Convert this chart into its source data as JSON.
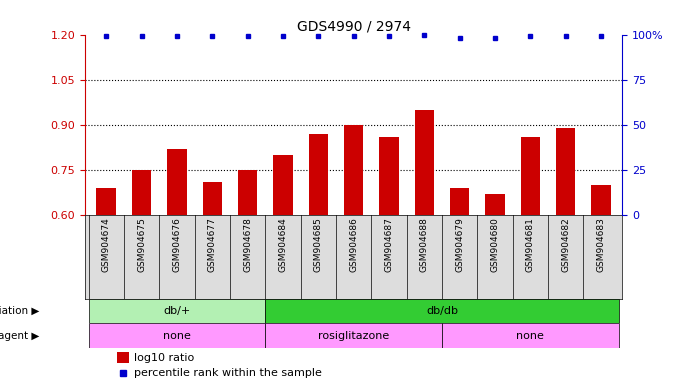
{
  "title": "GDS4990 / 2974",
  "samples": [
    "GSM904674",
    "GSM904675",
    "GSM904676",
    "GSM904677",
    "GSM904678",
    "GSM904684",
    "GSM904685",
    "GSM904686",
    "GSM904687",
    "GSM904688",
    "GSM904679",
    "GSM904680",
    "GSM904681",
    "GSM904682",
    "GSM904683"
  ],
  "log10_ratio": [
    0.69,
    0.75,
    0.82,
    0.71,
    0.75,
    0.8,
    0.87,
    0.9,
    0.86,
    0.95,
    0.69,
    0.67,
    0.86,
    0.89,
    0.7
  ],
  "percentile_vals": [
    99,
    99,
    99,
    99,
    99,
    99,
    99,
    99,
    99,
    99.5,
    98,
    98,
    99,
    99,
    99
  ],
  "bar_color": "#cc0000",
  "dot_color": "#0000cc",
  "ylim_left": [
    0.6,
    1.2
  ],
  "ylim_right": [
    0,
    100
  ],
  "yticks_left": [
    0.6,
    0.75,
    0.9,
    1.05,
    1.2
  ],
  "yticks_right": [
    0,
    25,
    50,
    75,
    100
  ],
  "hlines": [
    0.75,
    0.9,
    1.05
  ],
  "genotype_groups": [
    {
      "label": "db/+",
      "start": 0,
      "end": 5,
      "color": "#b3f0b3"
    },
    {
      "label": "db/db",
      "start": 5,
      "end": 15,
      "color": "#33cc33"
    }
  ],
  "agent_groups": [
    {
      "label": "none",
      "start": 0,
      "end": 5,
      "color": "#ff99ff"
    },
    {
      "label": "rosiglitazone",
      "start": 5,
      "end": 10,
      "color": "#ff99ff"
    },
    {
      "label": "none",
      "start": 10,
      "end": 15,
      "color": "#ff99ff"
    }
  ],
  "legend_bar_label": "log10 ratio",
  "legend_dot_label": "percentile rank within the sample",
  "left_label_color": "#cc0000",
  "right_label_color": "#0000cc",
  "tick_bg_color": "#dddddd",
  "background_color": "#ffffff"
}
